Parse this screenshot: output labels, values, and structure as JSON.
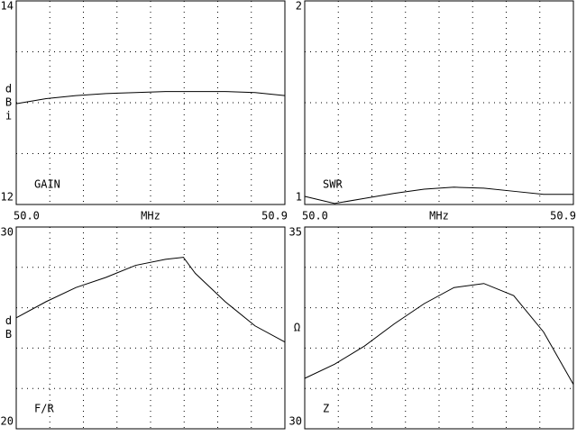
{
  "chart_data": [
    {
      "type": "line",
      "annotation": "GAIN",
      "ylabel": "dBi",
      "xlabel": "MHz",
      "x": [
        50.0,
        50.1,
        50.2,
        50.3,
        50.4,
        50.5,
        50.6,
        50.7,
        50.8,
        50.9
      ],
      "values": [
        12.99,
        13.04,
        13.07,
        13.09,
        13.1,
        13.11,
        13.11,
        13.11,
        13.1,
        13.07
      ],
      "xlim": [
        50.0,
        50.9
      ],
      "ylim": [
        12,
        14
      ],
      "xticks": [
        {
          "value": 50.0,
          "label": "50.0"
        },
        50.9
      ],
      "yticks": [
        14,
        12
      ],
      "grid": {
        "x": 8,
        "y": 4
      },
      "color": "#000000"
    },
    {
      "type": "line",
      "annotation": "SWR",
      "xlabel": "MHz",
      "x": [
        50.0,
        50.1,
        50.2,
        50.3,
        50.4,
        50.5,
        50.6,
        50.7,
        50.8,
        50.9
      ],
      "values": [
        1.04,
        1.005,
        1.03,
        1.055,
        1.075,
        1.085,
        1.08,
        1.065,
        1.05,
        1.05
      ],
      "xlim": [
        50.0,
        50.9
      ],
      "ylim": [
        1,
        2
      ],
      "xticks": [
        {
          "value": 50.0,
          "label": "50.0"
        },
        50.9
      ],
      "yticks": [
        2,
        1
      ],
      "grid": {
        "x": 8,
        "y": 4
      },
      "color": "#000000"
    },
    {
      "type": "line",
      "annotation": "F/R",
      "ylabel": "dB",
      "x": [
        50.0,
        50.1,
        50.2,
        50.3,
        50.4,
        50.5,
        50.56,
        50.6,
        50.7,
        50.8,
        50.9
      ],
      "values": [
        25.5,
        26.3,
        27.0,
        27.5,
        28.1,
        28.4,
        28.5,
        27.7,
        26.3,
        25.1,
        24.3
      ],
      "xlim": [
        50.0,
        50.9
      ],
      "ylim": [
        20,
        30
      ],
      "yticks": [
        30,
        20
      ],
      "grid": {
        "x": 8,
        "y": 5
      },
      "color": "#000000"
    },
    {
      "type": "line",
      "annotation": "Z",
      "ylabel": "Ω",
      "x": [
        50.0,
        50.1,
        50.2,
        50.3,
        50.4,
        50.5,
        50.6,
        50.7,
        50.8,
        50.9
      ],
      "values": [
        31.25,
        31.6,
        32.05,
        32.6,
        33.1,
        33.5,
        33.6,
        33.3,
        32.4,
        31.1
      ],
      "xlim": [
        50.0,
        50.9
      ],
      "ylim": [
        30,
        35
      ],
      "yticks": [
        35,
        30
      ],
      "grid": {
        "x": 8,
        "y": 5
      },
      "color": "#000000"
    }
  ]
}
